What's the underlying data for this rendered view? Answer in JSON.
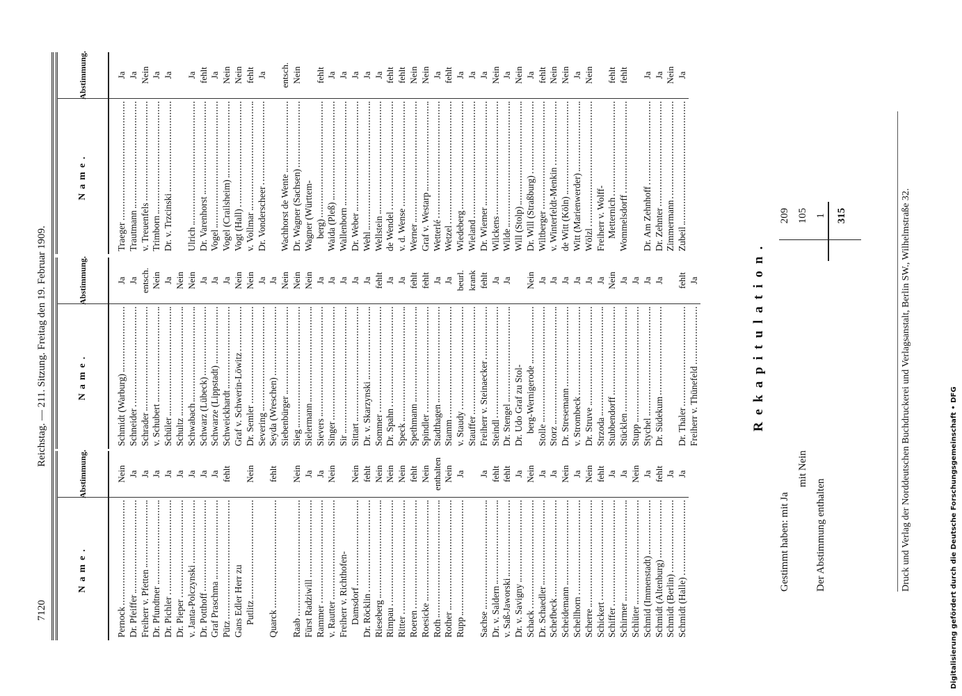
{
  "header": {
    "page_number": "7120",
    "title": "Reichstag. — 211. Sitzung. Freitag den 19. Februar 1909."
  },
  "columns": [
    {
      "head_name": "Name.",
      "head_vote": "Abstimmung.",
      "groups": [
        [
          {
            "name": "Pernock",
            "vote": "Nein"
          },
          {
            "name": "Dr. Pfeiffer",
            "vote": "Ja"
          },
          {
            "name": "Freiherr v. Pfetten",
            "vote": "Ja"
          },
          {
            "name": "Dr. Pfundtner",
            "vote": "Ja"
          },
          {
            "name": "Dr. Pichler",
            "vote": "Ja"
          },
          {
            "name": "Dr. Pieper",
            "vote": "Ja"
          },
          {
            "name": "v. Janta-Polczynski",
            "vote": "Ja"
          },
          {
            "name": "Dr. Potthoff",
            "vote": "Ja"
          },
          {
            "name": "Graf Praschma",
            "vote": "Ja"
          },
          {
            "name": "Pütz",
            "vote": "fehlt"
          },
          {
            "name": "Gans Edler Herr zu",
            "cont": "Putlitz",
            "vote": "Nein"
          }
        ],
        [
          {
            "name": "Quarck",
            "vote": "fehlt"
          }
        ],
        [
          {
            "name": "Raab",
            "vote": "Nein"
          },
          {
            "name": "Fürst Radziwill",
            "vote": "Ja"
          },
          {
            "name": "Rammer",
            "vote": "Ja"
          },
          {
            "name": "v. Rautter",
            "vote": "Nein"
          },
          {
            "name": "Freiherr v. Richthofen-",
            "cont": "Damsdorf",
            "vote": "Nein"
          },
          {
            "name": "Dr. Röcklin",
            "vote": "fehlt"
          },
          {
            "name": "Rieseberg",
            "vote": "Nein"
          },
          {
            "name": "Rimpau",
            "vote": "Nein"
          },
          {
            "name": "Ritter",
            "vote": "Nein"
          },
          {
            "name": "Roeren",
            "vote": "fehlt"
          },
          {
            "name": "Roesicke",
            "vote": "Nein"
          },
          {
            "name": "Roth",
            "vote": "enthalten"
          },
          {
            "name": "Rother",
            "vote": "Nein"
          },
          {
            "name": "Rupp",
            "vote": "Ja"
          }
        ],
        [
          {
            "name": "Sachse",
            "vote": "Ja"
          },
          {
            "name": "Dr. v. Saldern",
            "vote": "fehlt"
          },
          {
            "name": "v. Saß-Jaworski",
            "vote": "fehlt"
          },
          {
            "name": "Dr. v. Savigny",
            "vote": "Ja"
          },
          {
            "name": "Schack",
            "vote": "Nein"
          },
          {
            "name": "Dr. Schaedler",
            "vote": "Ja"
          },
          {
            "name": "Schefbeck",
            "vote": "Ja"
          },
          {
            "name": "Scheidemann",
            "vote": "Nein"
          },
          {
            "name": "Schellhorn",
            "vote": "Ja"
          },
          {
            "name": "Scherre",
            "vote": "Nein"
          },
          {
            "name": "Schickert",
            "vote": "fehlt"
          },
          {
            "name": "Schiffer",
            "vote": "Ja"
          },
          {
            "name": "Schirmer",
            "vote": "Ja"
          },
          {
            "name": "Schlüter",
            "vote": "Nein"
          },
          {
            "name": "Schmid (Immenstadt)",
            "vote": "Ja"
          },
          {
            "name": "Schmidt (Altenburg)",
            "vote": "fehlt"
          },
          {
            "name": "Schmidt (Berlin)",
            "vote": "Ja"
          },
          {
            "name": "Schmidt (Halle)",
            "vote": "Ja"
          }
        ]
      ]
    },
    {
      "head_name": "Name.",
      "head_vote": "Abstimmung.",
      "groups": [
        [
          {
            "name": "Schmidt (Warburg)",
            "vote": "Ja"
          },
          {
            "name": "Schneider",
            "vote": "Ja"
          },
          {
            "name": "Schrader",
            "vote": "entsch."
          },
          {
            "name": "v. Schubert",
            "vote": "Nein"
          },
          {
            "name": "Schüler",
            "vote": "Ja"
          },
          {
            "name": "Schultz",
            "vote": "Nein"
          },
          {
            "name": "Schwabach",
            "vote": "Nein"
          },
          {
            "name": "Schwarz (Lübeck)",
            "vote": "Ja"
          },
          {
            "name": "Schwarze (Lippstadt)",
            "vote": "Ja"
          },
          {
            "name": "Schweickhardt",
            "vote": "Ja"
          },
          {
            "name": "Graf v. Schwerin-Löwitz",
            "vote": "Nein"
          },
          {
            "name": "Dr. Semler",
            "vote": "Nein"
          },
          {
            "name": "Severing",
            "vote": "Ja"
          },
          {
            "name": "Seyda (Wreschen)",
            "vote": "Ja"
          },
          {
            "name": "Siebenbürger",
            "vote": "Nein"
          },
          {
            "name": "Sieg",
            "vote": "Nein"
          },
          {
            "name": "Sielermann",
            "vote": "Nein"
          },
          {
            "name": "Sievers",
            "vote": "Ja"
          },
          {
            "name": "Singer",
            "vote": "Ja"
          },
          {
            "name": "Sir",
            "vote": "Ja"
          },
          {
            "name": "Sittart",
            "vote": "Ja"
          },
          {
            "name": "Dr. v. Skarzynski",
            "vote": "Ja"
          },
          {
            "name": "Sommer",
            "vote": "fehlt"
          },
          {
            "name": "Dr. Spahn",
            "vote": "Ja"
          },
          {
            "name": "Speck",
            "vote": "Ja"
          },
          {
            "name": "Spethmann",
            "vote": "fehlt"
          },
          {
            "name": "Spindler",
            "vote": "fehlt"
          },
          {
            "name": "Stadthagen",
            "vote": "Ja"
          },
          {
            "name": "Stamm",
            "vote": "Ja"
          },
          {
            "name": "v. Staudy",
            "vote": "beurl."
          },
          {
            "name": "Stauffer",
            "vote": "krank"
          },
          {
            "name": "Freiherr v. Steinaecker",
            "vote": "fehlt"
          },
          {
            "name": "Steindl",
            "vote": "Ja"
          },
          {
            "name": "Dr. Stengel",
            "vote": "Ja"
          },
          {
            "name": "Dr. Udo Graf zu Stol-",
            "cont": "berg-Wernigerode",
            "vote": "Nein"
          },
          {
            "name": "Stolle",
            "vote": "Ja"
          },
          {
            "name": "Storz",
            "vote": "Ja"
          },
          {
            "name": "Dr. Stresemann",
            "vote": "Ja"
          },
          {
            "name": "v. Strombeck",
            "vote": "Ja"
          },
          {
            "name": "Dr. Struve",
            "vote": "Ja"
          },
          {
            "name": "Strzoda",
            "vote": "Ja"
          },
          {
            "name": "Stubbendorff",
            "vote": "Nein"
          },
          {
            "name": "Stücklen",
            "vote": "Ja"
          },
          {
            "name": "Stupp",
            "vote": "Ja"
          },
          {
            "name": "Stychel",
            "vote": "Ja"
          },
          {
            "name": "Dr. Südekum",
            "vote": "Ja"
          }
        ],
        [
          {
            "name": "Dr. Thaler",
            "vote": "fehlt"
          },
          {
            "name": "Freiherr v. Thünefeld",
            "vote": "Ja"
          }
        ]
      ]
    },
    {
      "head_name": "Name.",
      "head_vote": "Abstimmung.",
      "groups": [
        [
          {
            "name": "Traeger",
            "vote": "Ja"
          },
          {
            "name": "Trautmann",
            "vote": "Ja"
          },
          {
            "name": "v. Treuenfels",
            "vote": "Nein"
          },
          {
            "name": "Trimborn",
            "vote": "Ja"
          },
          {
            "name": "Dr. v. Trzcinski",
            "vote": "Ja"
          }
        ],
        [
          {
            "name": "Ulrich",
            "vote": "Ja"
          },
          {
            "name": "Dr. Varenhorst",
            "vote": "fehlt"
          },
          {
            "name": "Vogel",
            "vote": "Ja"
          },
          {
            "name": "Vogel (Crailsheim)",
            "vote": "Nein"
          },
          {
            "name": "Vogt (Hall)",
            "vote": "Nein"
          },
          {
            "name": "v. Vollmar",
            "vote": "fehlt"
          },
          {
            "name": "Dr. Vonderscheer",
            "vote": "Ja"
          }
        ],
        [
          {
            "name": "Wachhorst de Wente",
            "vote": "entsch."
          },
          {
            "name": "Dr. Wagner (Sachsen)",
            "vote": "Nein"
          },
          {
            "name": "Wagner (Württem-",
            "cont": "berg)",
            "vote": "fehlt"
          },
          {
            "name": "Waida (Pleß)",
            "vote": "Ja"
          },
          {
            "name": "Wallenborn",
            "vote": "Ja"
          },
          {
            "name": "Dr. Weber",
            "vote": "Ja"
          },
          {
            "name": "Wehl",
            "vote": "Ja"
          },
          {
            "name": "Wellstein",
            "vote": "Ja"
          },
          {
            "name": "de Wendel",
            "vote": "fehlt"
          },
          {
            "name": "v. d. Wense",
            "vote": "fehlt"
          },
          {
            "name": "Werner",
            "vote": "Nein"
          },
          {
            "name": "Graf v. Westarp",
            "vote": "Nein"
          },
          {
            "name": "Wetterlé",
            "vote": "Ja"
          },
          {
            "name": "Wetzel",
            "vote": "fehlt"
          },
          {
            "name": "Wiedeberg",
            "vote": "Ja"
          },
          {
            "name": "Wieland",
            "vote": "Ja"
          },
          {
            "name": "Dr. Wiemer",
            "vote": "Ja"
          },
          {
            "name": "Wilckens",
            "vote": "Nein"
          },
          {
            "name": "Wilde",
            "vote": "Ja"
          },
          {
            "name": "Will (Stolp)",
            "vote": "Nein"
          },
          {
            "name": "Dr. Will (Straßburg)",
            "vote": "Ja"
          },
          {
            "name": "Wiltberger",
            "vote": "fehlt"
          },
          {
            "name": "v. Winterfeldt-Menkin",
            "vote": "Nein"
          },
          {
            "name": "de Witt (Köln)",
            "vote": "Nein"
          },
          {
            "name": "Witt (Marienwerder)",
            "vote": "Ja"
          },
          {
            "name": "Wölzl",
            "vote": "Nein"
          },
          {
            "name": "Freiherr v. Wolff-",
            "cont": "Metternich",
            "vote": "fehlt"
          },
          {
            "name": "Wommelsdorff",
            "vote": "fehlt"
          }
        ],
        [
          {
            "name": "Dr. Am Zehnhoff",
            "vote": "Ja"
          },
          {
            "name": "Dr. Zehnter",
            "vote": "Ja"
          },
          {
            "name": "Zimmermann",
            "vote": "Nein"
          },
          {
            "name": "Zubeil",
            "vote": "Ja"
          }
        ]
      ]
    }
  ],
  "recap": {
    "title": "Rekapitulation.",
    "rows": [
      {
        "label": "Gestimmt haben: mit Ja",
        "value": "209"
      },
      {
        "label": "mit Nein",
        "value": "105"
      },
      {
        "label": "Der Abstimmung enthalten",
        "value": "1"
      }
    ],
    "total": "315"
  },
  "footer": "Druck und Verlag der Norddeutschen Buchdruckerei und Verlagsanstalt, Berlin SW., Wilhelmstraße 32.",
  "dfg": "Digitalisierung gefördert durch die Deutsche Forschungsgemeinschaft • DFG"
}
